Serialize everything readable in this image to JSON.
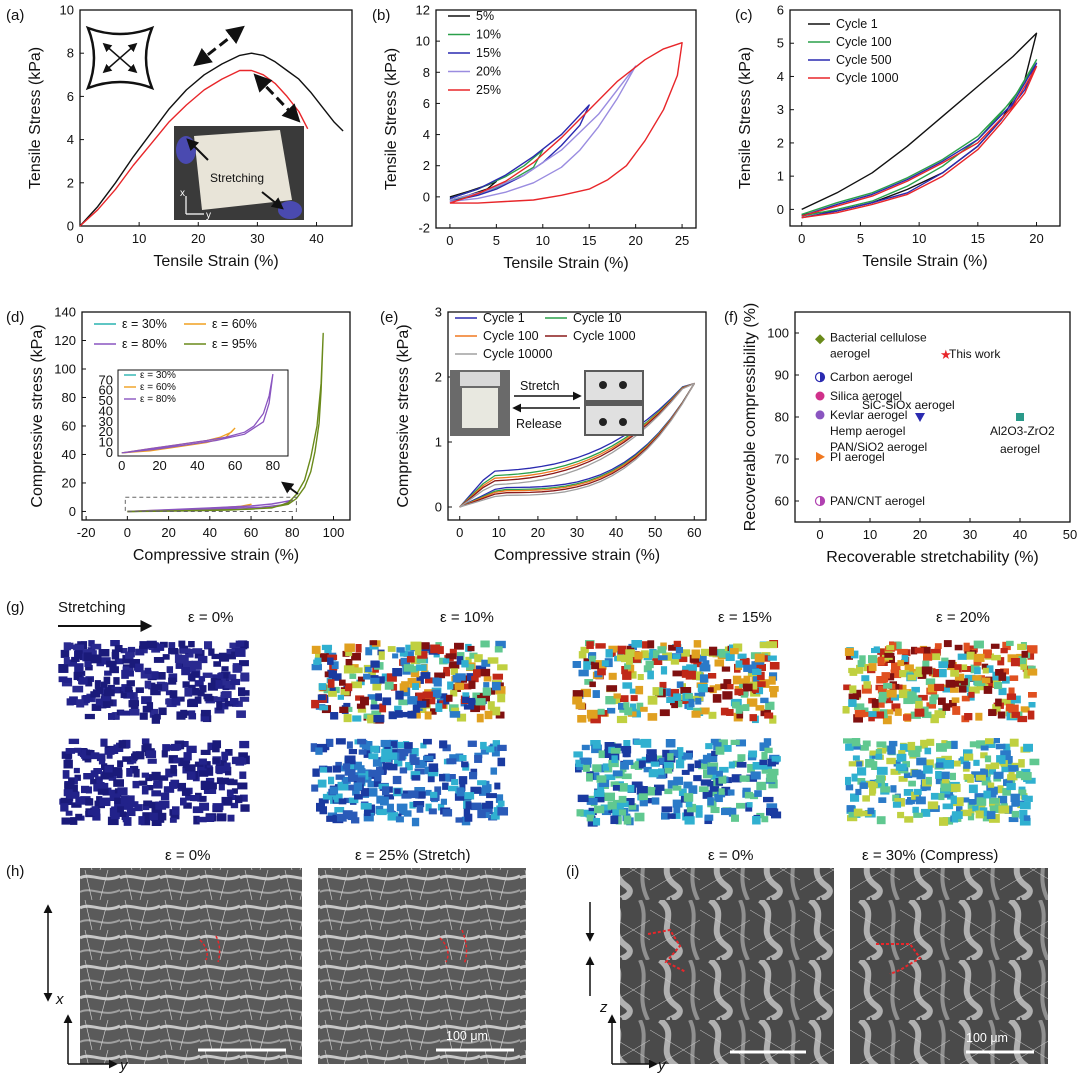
{
  "figure": {
    "panels": {
      "a": {
        "letter": "(a)",
        "annotation": "Stretching",
        "axis_x": "x",
        "axis_y": "y"
      },
      "b": {
        "letter": "(b)"
      },
      "c": {
        "letter": "(c)"
      },
      "d": {
        "letter": "(d)"
      },
      "e": {
        "letter": "(e)",
        "stretch": "Stretch",
        "release": "Release"
      },
      "f": {
        "letter": "(f)"
      },
      "g": {
        "letter": "(g)",
        "stretching": "Stretching",
        "strains": [
          "ε = 0%",
          "ε = 10%",
          "ε = 15%",
          "ε = 20%"
        ]
      },
      "h": {
        "letter": "(h)",
        "labels": [
          "ε = 0%",
          "ε = 25% (Stretch)"
        ],
        "scale": "100 μm",
        "axis_x": "x",
        "axis_y": "y"
      },
      "i": {
        "letter": "(i)",
        "labels": [
          "ε = 0%",
          "ε = 30% (Compress)"
        ],
        "scale": "100 μm",
        "axis_z": "z",
        "axis_y": "y"
      }
    }
  },
  "chart_data": [
    {
      "id": "a",
      "type": "line",
      "xlabel": "Tensile Strain (%)",
      "ylabel": "Tensile Stress (kPa)",
      "xlim": [
        0,
        46
      ],
      "ylim": [
        0,
        10
      ],
      "xticks": [
        0,
        10,
        20,
        30,
        40
      ],
      "yticks": [
        0,
        2,
        4,
        6,
        8,
        10
      ],
      "series": [
        {
          "color": "#111111",
          "x": [
            0,
            3,
            6,
            9,
            12,
            15,
            18,
            21,
            24,
            27,
            29,
            31,
            33,
            35,
            37,
            39,
            41,
            43,
            44.5
          ],
          "y": [
            0,
            0.9,
            2.0,
            3.2,
            4.3,
            5.4,
            6.3,
            7.0,
            7.5,
            7.9,
            8.0,
            7.9,
            7.6,
            7.2,
            6.8,
            6.2,
            5.5,
            4.8,
            4.4
          ]
        },
        {
          "color": "#e8262a",
          "x": [
            0,
            3,
            6,
            9,
            12,
            15,
            18,
            21,
            24,
            27,
            29,
            31,
            33,
            35,
            37,
            38.5
          ],
          "y": [
            0,
            0.75,
            1.7,
            2.8,
            3.8,
            4.8,
            5.6,
            6.3,
            6.8,
            7.2,
            7.2,
            7.0,
            6.6,
            6.0,
            5.3,
            4.5
          ]
        }
      ]
    },
    {
      "id": "b",
      "type": "line",
      "xlabel": "Tensile Strain (%)",
      "ylabel": "Tensile Stress (kPa)",
      "xlim": [
        -1.5,
        26.5
      ],
      "ylim": [
        -2,
        12
      ],
      "xticks": [
        0,
        5,
        10,
        15,
        20,
        25
      ],
      "yticks": [
        -2,
        0,
        2,
        4,
        6,
        8,
        10,
        12
      ],
      "series": [
        {
          "name": "5%",
          "color": "#111111",
          "x": [
            0,
            2,
            4,
            5,
            4,
            2,
            0
          ],
          "y": [
            0,
            0.35,
            0.75,
            1.0,
            0.5,
            0.1,
            -0.2
          ]
        },
        {
          "name": "10%",
          "color": "#2aa04a",
          "x": [
            0,
            3,
            6,
            8,
            10,
            9,
            7,
            5,
            3,
            1,
            0
          ],
          "y": [
            -0.1,
            0.5,
            1.3,
            2.0,
            3.0,
            1.9,
            1.2,
            0.6,
            0.2,
            -0.1,
            -0.2
          ]
        },
        {
          "name": "15%",
          "color": "#2a2ab0",
          "x": [
            0,
            3,
            6,
            9,
            12,
            15,
            14,
            12,
            10,
            8,
            5,
            3,
            0
          ],
          "y": [
            -0.1,
            0.5,
            1.4,
            2.6,
            4.0,
            5.9,
            4.6,
            3.3,
            2.2,
            1.4,
            0.5,
            0.1,
            -0.3
          ]
        },
        {
          "name": "20%",
          "color": "#9a8ce0",
          "x": [
            0,
            4,
            8,
            12,
            16,
            20,
            18,
            16,
            14,
            12,
            9,
            6,
            3,
            0
          ],
          "y": [
            -0.2,
            0.4,
            1.4,
            3.0,
            5.3,
            8.4,
            6.3,
            4.5,
            3.0,
            1.9,
            0.9,
            0.3,
            -0.1,
            -0.3
          ]
        },
        {
          "name": "25%",
          "color": "#e8262a",
          "x": [
            0,
            3,
            6,
            9,
            12,
            15,
            18,
            21,
            23,
            25,
            24.5,
            23,
            21,
            19,
            17,
            15,
            12,
            9,
            6,
            3,
            0
          ],
          "y": [
            -0.4,
            0.2,
            1.0,
            2.2,
            3.8,
            5.6,
            7.4,
            8.8,
            9.5,
            9.9,
            7.8,
            5.6,
            3.6,
            2.0,
            1.1,
            0.5,
            0.1,
            -0.2,
            -0.3,
            -0.4,
            -0.4
          ]
        }
      ]
    },
    {
      "id": "c",
      "type": "line",
      "xlabel": "Tensile Strain (%)",
      "ylabel": "Tensile Stress (kPa)",
      "xlim": [
        -1,
        22
      ],
      "ylim": [
        -0.5,
        6
      ],
      "xticks": [
        0,
        5,
        10,
        15,
        20
      ],
      "yticks": [
        0,
        1,
        2,
        3,
        4,
        5,
        6
      ],
      "series": [
        {
          "name": "Cycle 1",
          "color": "#111111",
          "x": [
            0,
            3,
            6,
            9,
            12,
            15,
            18,
            20,
            19,
            17,
            15,
            12,
            9,
            6,
            3,
            0
          ],
          "y": [
            0,
            0.5,
            1.1,
            1.9,
            2.8,
            3.7,
            4.6,
            5.3,
            3.9,
            2.7,
            1.9,
            1.1,
            0.6,
            0.2,
            -0.05,
            -0.15
          ]
        },
        {
          "name": "Cycle 100",
          "color": "#2aa04a",
          "x": [
            0,
            3,
            6,
            9,
            12,
            15,
            18,
            20,
            19,
            17,
            15,
            12,
            9,
            6,
            3,
            0
          ],
          "y": [
            -0.15,
            0.2,
            0.5,
            0.95,
            1.5,
            2.2,
            3.3,
            4.5,
            3.8,
            2.9,
            2.1,
            1.3,
            0.7,
            0.25,
            0.0,
            -0.2
          ]
        },
        {
          "name": "Cycle 500",
          "color": "#2a2ab0",
          "x": [
            0,
            3,
            6,
            9,
            12,
            15,
            18,
            20,
            19,
            17,
            15,
            12,
            9,
            6,
            3,
            0
          ],
          "y": [
            -0.2,
            0.15,
            0.45,
            0.9,
            1.45,
            2.1,
            3.2,
            4.4,
            3.6,
            2.7,
            1.9,
            1.1,
            0.5,
            0.2,
            -0.05,
            -0.25
          ]
        },
        {
          "name": "Cycle 1000",
          "color": "#e8262a",
          "x": [
            0,
            3,
            6,
            9,
            12,
            15,
            18,
            20,
            19,
            17,
            15,
            12,
            9,
            6,
            3,
            0
          ],
          "y": [
            -0.2,
            0.1,
            0.4,
            0.85,
            1.4,
            2.0,
            3.1,
            4.3,
            3.5,
            2.6,
            1.8,
            1.0,
            0.45,
            0.15,
            -0.1,
            -0.25
          ]
        }
      ]
    },
    {
      "id": "d",
      "type": "line",
      "xlabel": "Compressive strain (%)",
      "ylabel": "Compressive stress (kPa)",
      "xlim": [
        -22,
        108
      ],
      "ylim": [
        -6,
        140
      ],
      "xticks": [
        -20,
        0,
        20,
        40,
        60,
        80,
        100
      ],
      "yticks": [
        0,
        20,
        40,
        60,
        80,
        100,
        120,
        140
      ],
      "series": [
        {
          "name": "ε = 30%",
          "color": "#2ab3b0",
          "x": [
            0,
            10,
            20,
            30,
            20,
            10,
            0
          ],
          "y": [
            0,
            0.4,
            0.9,
            1.5,
            0.7,
            0.2,
            0
          ]
        },
        {
          "name": "ε = 60%",
          "color": "#f0a020",
          "x": [
            0,
            15,
            30,
            45,
            55,
            60,
            55,
            40,
            20,
            0
          ],
          "y": [
            0,
            0.8,
            1.6,
            2.6,
            3.6,
            5.0,
            2.6,
            1.4,
            0.5,
            0
          ]
        },
        {
          "name": "ε = 80%",
          "color": "#8a55c0",
          "x": [
            0,
            20,
            40,
            60,
            70,
            75,
            78,
            80,
            75,
            65,
            50,
            30,
            10,
            0
          ],
          "y": [
            0,
            1.2,
            2.4,
            3.8,
            5.2,
            6.5,
            7.4,
            8.0,
            4.5,
            3.0,
            2.1,
            1.2,
            0.3,
            0
          ]
        },
        {
          "name": "ε = 95%",
          "color": "#6a8a1a",
          "x": [
            0,
            20,
            40,
            60,
            70,
            78,
            82,
            86,
            89,
            91,
            93,
            94,
            95,
            94,
            92,
            89,
            86,
            82,
            78,
            70,
            50,
            20,
            0
          ],
          "y": [
            0,
            0.4,
            0.9,
            1.6,
            2.8,
            5,
            9,
            17,
            28,
            42,
            62,
            85,
            125,
            90,
            60,
            38,
            22,
            12,
            6,
            2.5,
            1,
            0.2,
            0
          ]
        }
      ],
      "inset": {
        "xlim": [
          -2,
          88
        ],
        "ylim": [
          -3,
          80
        ],
        "xticks": [
          0,
          20,
          40,
          60,
          80
        ],
        "yticks": [
          0,
          10,
          20,
          30,
          40,
          50,
          60,
          70
        ],
        "series": [
          {
            "name": "ε = 30%",
            "color": "#2ab3b0",
            "x": [
              0,
              10,
              20,
              30,
              25,
              15,
              5,
              0
            ],
            "y": [
              0,
              2,
              4,
              7,
              5,
              3,
              1,
              0
            ]
          },
          {
            "name": "ε = 60%",
            "color": "#f0a020",
            "x": [
              0,
              15,
              30,
              45,
              52,
              58,
              60,
              55,
              45,
              30,
              15,
              0
            ],
            "y": [
              0,
              4,
              8,
              12,
              15,
              20,
              24,
              15,
              10,
              6,
              2,
              0
            ]
          },
          {
            "name": "ε = 80%",
            "color": "#8a55c0",
            "x": [
              0,
              15,
              30,
              45,
              55,
              65,
              70,
              75,
              78,
              80,
              78,
              75,
              65,
              50,
              35,
              20,
              5,
              0
            ],
            "y": [
              0,
              4,
              8,
              12,
              15,
              20,
              26,
              38,
              55,
              76,
              48,
              30,
              18,
              12,
              8,
              4,
              1,
              0
            ]
          }
        ]
      }
    },
    {
      "id": "e",
      "type": "line",
      "xlabel": "Compressive strain (%)",
      "ylabel": "Compressive stress (kPa)",
      "xlim": [
        -3,
        63
      ],
      "ylim": [
        -0.2,
        3
      ],
      "xticks": [
        0,
        10,
        20,
        30,
        40,
        50,
        60
      ],
      "yticks": [
        0,
        1,
        2,
        3
      ],
      "series": [
        {
          "name": "Cycle 1",
          "color": "#2a2ab0",
          "top": 0.55,
          "bottom": 0.3
        },
        {
          "name": "Cycle 10",
          "color": "#2aa04a",
          "top": 0.48,
          "bottom": 0.27
        },
        {
          "name": "Cycle 100",
          "color": "#f07820",
          "top": 0.44,
          "bottom": 0.25
        },
        {
          "name": "Cycle 1000",
          "color": "#8a1a1a",
          "top": 0.4,
          "bottom": 0.22
        },
        {
          "name": "Cycle 10000",
          "color": "#a0a0a0",
          "top": 0.34,
          "bottom": 0.18
        }
      ],
      "peak": 1.9
    },
    {
      "id": "f",
      "type": "scatter",
      "xlabel": "Recoverable stretchability (%)",
      "ylabel": "Recoverable compressibility (%)",
      "xlim": [
        -5,
        50
      ],
      "ylim": [
        55,
        105
      ],
      "xticks": [
        0,
        10,
        20,
        30,
        40,
        50
      ],
      "yticks": [
        60,
        70,
        80,
        90,
        100
      ],
      "points": [
        {
          "label": "Bacterial cellulose aerogel",
          "x": 0,
          "y": 98.5,
          "color": "#6a8a1a",
          "marker": "diamond"
        },
        {
          "label": "This work",
          "x": 25,
          "y": 95,
          "color": "#e8262a",
          "marker": "star"
        },
        {
          "label": "Carbon aerogel",
          "x": 0,
          "y": 89.5,
          "color": "#2a2ab0",
          "marker": "half"
        },
        {
          "label": "Silica aerogel",
          "x": 0,
          "y": 85,
          "color": "#d0308a",
          "marker": "circle"
        },
        {
          "label": "Kevlar aerogel",
          "x": 0,
          "y": 80.5,
          "color": "#8a55c0",
          "marker": "circle"
        },
        {
          "label": "SiC-SiOx aerogel",
          "x": 20,
          "y": 80,
          "color": "#2a2ab0",
          "marker": "triangle-down"
        },
        {
          "label": "Al2O3-ZrO2 aerogel",
          "x": 40,
          "y": 80,
          "color": "#2a9a8a",
          "marker": "square"
        },
        {
          "label": "PI aerogel",
          "x": 0,
          "y": 70.5,
          "color": "#f07820",
          "marker": "triangle-right"
        },
        {
          "label": "PAN/CNT aerogel",
          "x": 0,
          "y": 60,
          "color": "#b040b0",
          "marker": "half"
        }
      ],
      "extra_labels": [
        "Hemp aerogel",
        "PAN/SiO2 aerogel"
      ]
    }
  ]
}
